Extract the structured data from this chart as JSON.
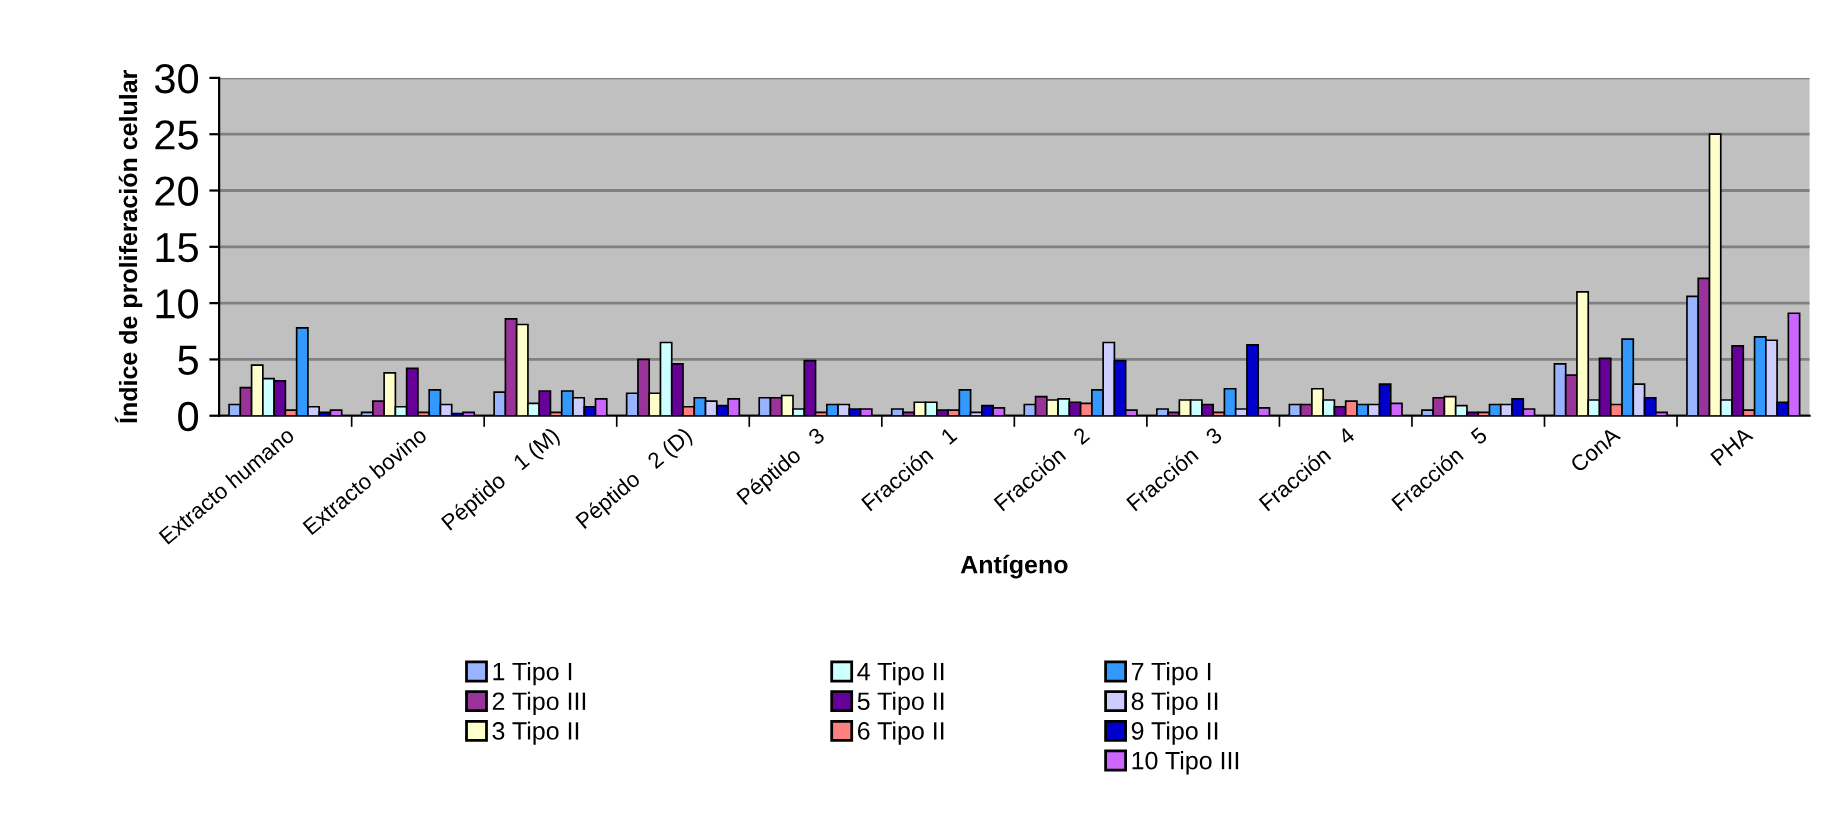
{
  "chart_data": {
    "type": "bar",
    "xlabel": "Antígeno",
    "ylabel": "Índice de proliferación celular",
    "categories": [
      "Extracto humano",
      "Extracto bovino",
      "Péptido   1 (M)",
      "Péptido   2 (D)",
      "Péptido   3",
      "Fracción   1",
      "Fracción   2",
      "Fracción   3",
      "Fracción   4",
      "Fracción   5",
      "ConA",
      "PHA"
    ],
    "ylim": [
      0,
      30
    ],
    "yticks": [
      0,
      5,
      10,
      15,
      20,
      25,
      30
    ],
    "grid": "y",
    "legend": "bottom",
    "series": [
      {
        "name": "1 Tipo I",
        "color": "#99b3ff",
        "values": [
          1.0,
          0.3,
          2.1,
          2.0,
          1.6,
          0.6,
          1.0,
          0.6,
          1.0,
          0.5,
          4.6,
          10.6
        ]
      },
      {
        "name": "2 Tipo III",
        "color": "#993399",
        "values": [
          2.5,
          1.3,
          8.6,
          5.0,
          1.6,
          0.3,
          1.7,
          0.3,
          1.0,
          1.6,
          3.6,
          12.2
        ]
      },
      {
        "name": "3 Tipo II",
        "color": "#ffffcc",
        "values": [
          4.5,
          3.8,
          8.1,
          2.0,
          1.8,
          1.2,
          1.4,
          1.4,
          2.4,
          1.7,
          11.0,
          25.0
        ]
      },
      {
        "name": "4 Tipo II",
        "color": "#ccffff",
        "values": [
          3.3,
          0.8,
          1.1,
          6.5,
          0.6,
          1.2,
          1.5,
          1.4,
          1.4,
          0.9,
          1.4,
          1.4
        ]
      },
      {
        "name": "5 Tipo II",
        "color": "#660099",
        "values": [
          3.1,
          4.2,
          2.2,
          4.6,
          4.9,
          0.5,
          1.2,
          1.0,
          0.8,
          0.3,
          5.1,
          6.2
        ]
      },
      {
        "name": "6 Tipo II",
        "color": "#ff8080",
        "values": [
          0.5,
          0.3,
          0.3,
          0.8,
          0.3,
          0.5,
          1.1,
          0.3,
          1.3,
          0.3,
          1.0,
          0.5
        ]
      },
      {
        "name": "7 Tipo I",
        "color": "#3399ff",
        "values": [
          7.8,
          2.3,
          2.2,
          1.6,
          1.0,
          2.3,
          2.3,
          2.4,
          1.0,
          1.0,
          6.8,
          7.0
        ]
      },
      {
        "name": "8 Tipo II",
        "color": "#ccccff",
        "values": [
          0.8,
          1.0,
          1.6,
          1.3,
          1.0,
          0.3,
          6.5,
          0.6,
          1.0,
          1.0,
          2.8,
          6.7
        ]
      },
      {
        "name": "9 Tipo II",
        "color": "#0000cc",
        "values": [
          0.3,
          0.2,
          0.8,
          0.9,
          0.6,
          0.9,
          4.9,
          6.3,
          2.8,
          1.5,
          1.6,
          1.2
        ]
      },
      {
        "name": "10 Tipo III",
        "color": "#cc66ff",
        "values": [
          0.5,
          0.3,
          1.5,
          1.5,
          0.6,
          0.7,
          0.5,
          0.7,
          1.1,
          0.6,
          0.3,
          9.1
        ]
      }
    ]
  }
}
